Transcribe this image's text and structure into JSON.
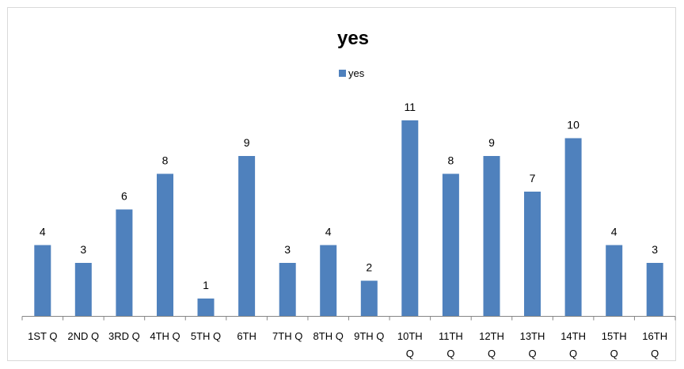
{
  "chart_data": {
    "type": "bar",
    "title": "yes",
    "legend": {
      "position": "top",
      "entries": [
        "yes"
      ]
    },
    "categories": [
      "1ST Q",
      "2ND Q",
      "3RD Q",
      "4TH Q",
      "5TH Q",
      "6TH",
      "7TH Q",
      "8TH Q",
      "9TH Q",
      "10TH Q",
      "11TH Q",
      "12TH Q",
      "13TH Q",
      "14TH Q",
      "15TH Q",
      "16TH Q"
    ],
    "series": [
      {
        "name": "yes",
        "color": "#4F81BD",
        "values": [
          4,
          3,
          6,
          8,
          1,
          9,
          3,
          4,
          2,
          11,
          8,
          9,
          7,
          10,
          4,
          3
        ]
      }
    ],
    "ylim": [
      0,
      11
    ],
    "grid": false,
    "data_labels": true
  }
}
